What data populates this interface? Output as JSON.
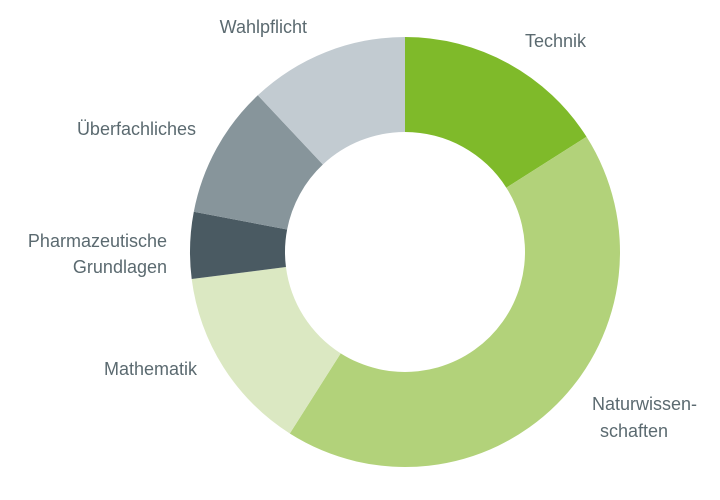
{
  "chart_data": {
    "type": "donut",
    "categories": [
      [
        "Technik"
      ],
      [
        "Naturwissen-",
        "schaften"
      ],
      [
        "Mathematik"
      ],
      [
        "Pharmazeutische",
        "Grundlagen"
      ],
      [
        "Überfachliches"
      ],
      [
        "Wahlpflicht"
      ]
    ],
    "values": [
      16,
      43,
      14,
      5,
      10,
      12
    ],
    "colors": [
      "#7fba2a",
      "#b2d27a",
      "#dbe8c2",
      "#4a5a62",
      "#87959b",
      "#c2cbd1"
    ]
  }
}
